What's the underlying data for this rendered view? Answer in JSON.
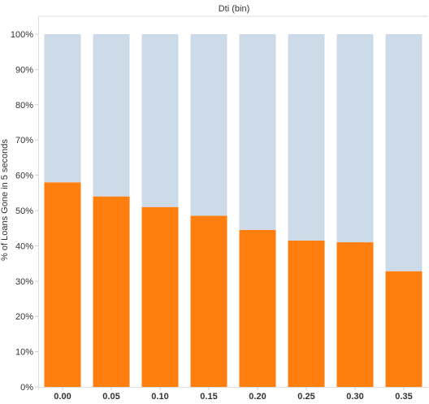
{
  "chart_data": {
    "type": "bar",
    "stacked": true,
    "title": "Dti (bin)",
    "xlabel": "",
    "ylabel": "% of Loans Gone in 5 seconds",
    "categories": [
      "0.00",
      "0.05",
      "0.10",
      "0.15",
      "0.20",
      "0.25",
      "0.30",
      "0.35"
    ],
    "series": [
      {
        "values": [
          58,
          54,
          51,
          48.5,
          44.5,
          41.5,
          41,
          32.8
        ],
        "color": "#ff7f0e"
      },
      {
        "values": [
          42,
          46,
          49,
          51.5,
          55.5,
          58.5,
          59,
          67.2
        ],
        "color": "#cddbe8"
      }
    ],
    "ylim": [
      0,
      100
    ],
    "yticks": [
      "0%",
      "10%",
      "20%",
      "30%",
      "40%",
      "50%",
      "60%",
      "70%",
      "80%",
      "90%",
      "100%"
    ],
    "grid": false,
    "legend": "none"
  }
}
